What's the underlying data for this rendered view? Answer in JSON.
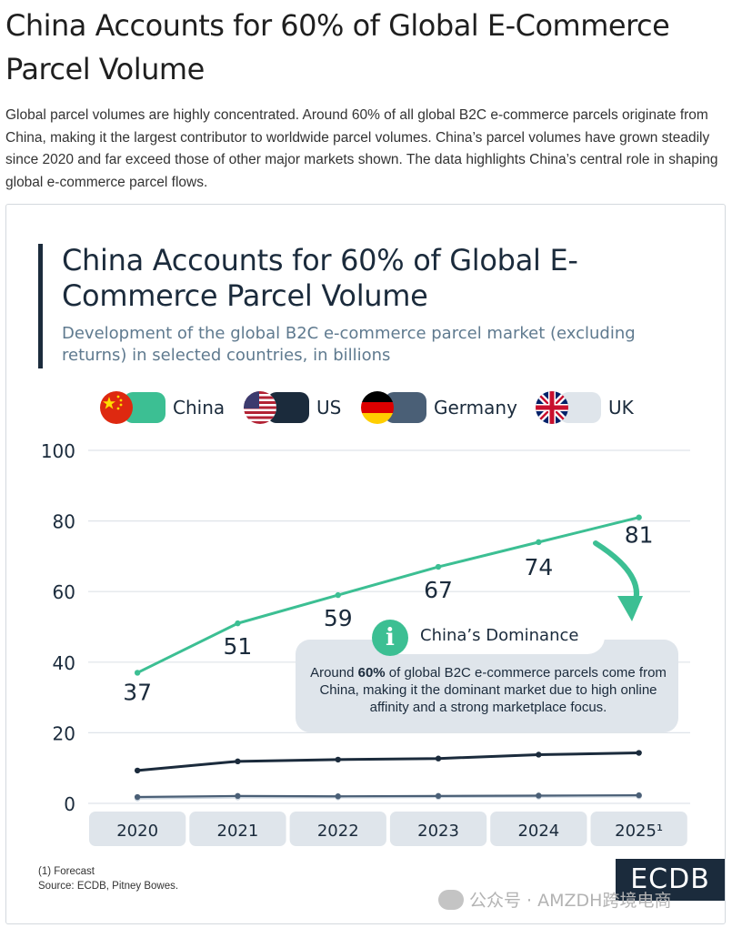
{
  "page": {
    "title": "China Accounts for 60% of Global E-Commerce Parcel Volume",
    "intro": "Global parcel volumes are highly concentrated. Around 60% of all global B2C e-commerce parcels originate from China, making it the largest contributor to worldwide parcel volumes. China’s parcel volumes have grown steadily since 2020 and far exceed those of other major markets shown. The data highlights China’s central role in shaping global e-commerce parcel flows."
  },
  "legend": [
    {
      "label": "China",
      "color": "#3cbf93",
      "flag": "china-flag-icon"
    },
    {
      "label": "US",
      "color": "#1b2b3c",
      "flag": "us-flag-icon"
    },
    {
      "label": "Germany",
      "color": "#4a5f76",
      "flag": "germany-flag-icon"
    },
    {
      "label": "UK",
      "color": "#dfe5eb",
      "flag": "uk-flag-icon"
    }
  ],
  "callout": {
    "icon": "info-icon",
    "title": "China’s Dominance",
    "text_before": "Around ",
    "text_bold": "60%",
    "text_after": " of global B2C e-commerce parcels come from China, making it the dominant market due to high online affinity and a strong marketplace focus."
  },
  "footnote": {
    "forecast": "(1) Forecast",
    "source": "Source: ECDB, Pitney Bowes."
  },
  "brand": "ECDB",
  "watermark": "公众号 · AMZDH跨境电商",
  "chart_data": {
    "type": "line",
    "title": "China Accounts for 60% of Global E-Commerce Parcel Volume",
    "subtitle": "Development of the global B2C e-commerce parcel market (excluding returns) in selected countries, in billions",
    "categories": [
      "2020",
      "2021",
      "2022",
      "2023",
      "2024",
      "2025¹"
    ],
    "ylim": [
      0,
      100
    ],
    "yticks": [
      0,
      20,
      40,
      60,
      80,
      100
    ],
    "grid": true,
    "legend_position": "top",
    "series": [
      {
        "name": "China",
        "color": "#3cbf93",
        "values": [
          37,
          51,
          59,
          67,
          74,
          81
        ],
        "labels": [
          "37",
          "51",
          "59",
          "67",
          "74",
          "81"
        ]
      },
      {
        "name": "US",
        "color": "#1b2b3c",
        "values": [
          9.3,
          11.9,
          12.4,
          12.7,
          13.8,
          14.3
        ]
      },
      {
        "name": "Germany",
        "color": "#4a5f76",
        "values": [
          1.8,
          2.1,
          2.0,
          2.1,
          2.2,
          2.3
        ]
      },
      {
        "name": "UK",
        "color": "#c9d3dd",
        "values": [
          1.4,
          1.7,
          1.7,
          1.8,
          1.9,
          2.0
        ]
      }
    ]
  }
}
